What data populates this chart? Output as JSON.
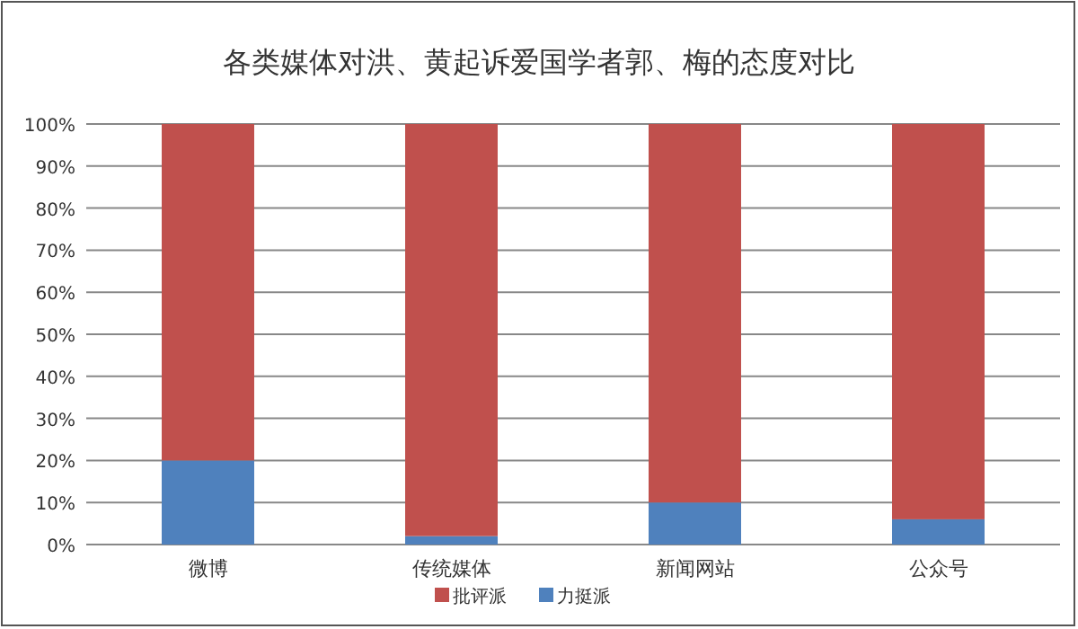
{
  "chart_data": {
    "type": "bar",
    "title": "各类媒体对洪、黄起诉爱国学者郭、梅的态度对比",
    "categories": [
      "微博",
      "传统媒体",
      "新闻网站",
      "公众号"
    ],
    "stacked": true,
    "series": [
      {
        "name": "力挺派",
        "color": "#4f81bd",
        "values": [
          20,
          2,
          10,
          6
        ]
      },
      {
        "name": "批评派",
        "color": "#c0504d",
        "values": [
          80,
          98,
          90,
          94
        ]
      }
    ],
    "ylim": [
      0,
      100
    ],
    "yticks": [
      {
        "value": 0,
        "label": "0%"
      },
      {
        "value": 10,
        "label": "10%"
      },
      {
        "value": 20,
        "label": "20%"
      },
      {
        "value": 30,
        "label": "30%"
      },
      {
        "value": 40,
        "label": "40%"
      },
      {
        "value": 50,
        "label": "50%"
      },
      {
        "value": 60,
        "label": "60%"
      },
      {
        "value": 70,
        "label": "70%"
      },
      {
        "value": 80,
        "label": "80%"
      },
      {
        "value": 90,
        "label": "90%"
      },
      {
        "value": 100,
        "label": "100%"
      }
    ],
    "grid": "y",
    "legend": "bottom"
  }
}
